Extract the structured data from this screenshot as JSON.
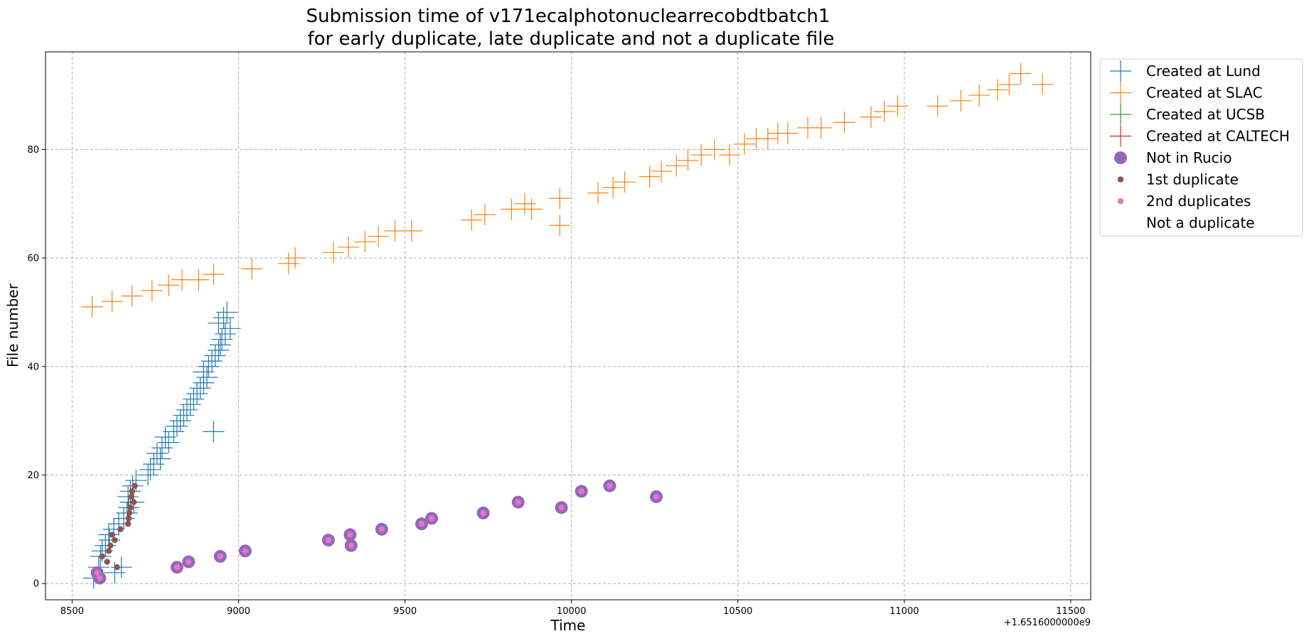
{
  "chart_data": {
    "type": "scatter",
    "title": [
      "Submission time of v171ecalphotonuclearrecobdtbatch1",
      "for early duplicate, late duplicate and not a duplicate file"
    ],
    "xlabel": "Time",
    "ylabel": "File number",
    "x_offset_label": "+1.6516000000e9",
    "xlim": [
      8420,
      11560
    ],
    "ylim": [
      -3,
      98
    ],
    "xticks": [
      8500,
      9000,
      9500,
      10000,
      10500,
      11000,
      11500
    ],
    "yticks": [
      0,
      20,
      40,
      60,
      80
    ],
    "grid": true,
    "legend_position": "outside-right",
    "series": [
      {
        "name": "Created at Lund",
        "marker": "plus",
        "color": "#1f77b4",
        "points": [
          [
            8565,
            1
          ],
          [
            8580,
            3
          ],
          [
            8590,
            6
          ],
          [
            8610,
            9
          ],
          [
            8628,
            2
          ],
          [
            8648,
            3
          ],
          [
            8585,
            5
          ],
          [
            8600,
            7
          ],
          [
            8612,
            8
          ],
          [
            8625,
            10
          ],
          [
            8640,
            11
          ],
          [
            8655,
            12
          ],
          [
            8665,
            13
          ],
          [
            8670,
            14
          ],
          [
            8675,
            15
          ],
          [
            8685,
            15
          ],
          [
            8668,
            16
          ],
          [
            8675,
            17
          ],
          [
            8682,
            18
          ],
          [
            8692,
            19
          ],
          [
            8728,
            20
          ],
          [
            8735,
            21
          ],
          [
            8745,
            22
          ],
          [
            8765,
            23
          ],
          [
            8755,
            24
          ],
          [
            8770,
            25
          ],
          [
            8790,
            26
          ],
          [
            8780,
            27
          ],
          [
            8805,
            28
          ],
          [
            8815,
            29
          ],
          [
            8825,
            30
          ],
          [
            8835,
            31
          ],
          [
            8845,
            32
          ],
          [
            8855,
            33
          ],
          [
            8865,
            34
          ],
          [
            8875,
            35
          ],
          [
            8885,
            36
          ],
          [
            8895,
            37
          ],
          [
            8905,
            38
          ],
          [
            8895,
            39
          ],
          [
            8910,
            40
          ],
          [
            8920,
            41
          ],
          [
            8930,
            42
          ],
          [
            8940,
            43
          ],
          [
            8945,
            44
          ],
          [
            8950,
            45
          ],
          [
            8960,
            46
          ],
          [
            8975,
            47
          ],
          [
            8940,
            48
          ],
          [
            8955,
            49
          ],
          [
            8965,
            50
          ],
          [
            8925,
            28
          ]
        ]
      },
      {
        "name": "Created at SLAC",
        "marker": "plus",
        "color": "#ff7f0e",
        "points": [
          [
            8560,
            51
          ],
          [
            8620,
            52
          ],
          [
            8680,
            53
          ],
          [
            8740,
            54
          ],
          [
            8790,
            55
          ],
          [
            8830,
            56
          ],
          [
            8880,
            56
          ],
          [
            8925,
            57
          ],
          [
            9040,
            58
          ],
          [
            9150,
            59
          ],
          [
            9170,
            60
          ],
          [
            9285,
            61
          ],
          [
            9330,
            62
          ],
          [
            9380,
            63
          ],
          [
            9420,
            64
          ],
          [
            9470,
            65
          ],
          [
            9520,
            65
          ],
          [
            9700,
            67
          ],
          [
            9740,
            68
          ],
          [
            9820,
            69
          ],
          [
            9860,
            70
          ],
          [
            9880,
            69
          ],
          [
            9965,
            71
          ],
          [
            9965,
            66
          ],
          [
            10080,
            72
          ],
          [
            10125,
            73
          ],
          [
            10160,
            74
          ],
          [
            10235,
            75
          ],
          [
            10270,
            76
          ],
          [
            10315,
            77
          ],
          [
            10350,
            78
          ],
          [
            10390,
            79
          ],
          [
            10430,
            80
          ],
          [
            10475,
            79
          ],
          [
            10520,
            81
          ],
          [
            10555,
            82
          ],
          [
            10590,
            82
          ],
          [
            10620,
            83
          ],
          [
            10650,
            83
          ],
          [
            10710,
            84
          ],
          [
            10750,
            84
          ],
          [
            10820,
            85
          ],
          [
            10900,
            86
          ],
          [
            10940,
            87
          ],
          [
            10980,
            88
          ],
          [
            11100,
            88
          ],
          [
            11170,
            89
          ],
          [
            11225,
            90
          ],
          [
            11280,
            91
          ],
          [
            11315,
            92
          ],
          [
            11350,
            94
          ],
          [
            11415,
            92
          ]
        ]
      },
      {
        "name": "Created at UCSB",
        "marker": "plus",
        "color": "#2ca02c",
        "points": []
      },
      {
        "name": "Created at CALTECH",
        "marker": "plus",
        "color": "#d62728",
        "points": []
      },
      {
        "name": "Not in Rucio",
        "marker": "circle-large",
        "color": "#9467bd",
        "points": [
          [
            8575,
            2
          ],
          [
            8583,
            1
          ],
          [
            8815,
            3
          ],
          [
            8850,
            4
          ],
          [
            8945,
            5
          ],
          [
            9020,
            6
          ],
          [
            9270,
            8
          ],
          [
            9335,
            9
          ],
          [
            9338,
            7
          ],
          [
            9430,
            10
          ],
          [
            9550,
            11
          ],
          [
            9580,
            12
          ],
          [
            9735,
            13
          ],
          [
            9840,
            15
          ],
          [
            9970,
            14
          ],
          [
            10030,
            17
          ],
          [
            10115,
            18
          ],
          [
            10255,
            16
          ]
        ]
      },
      {
        "name": "1st duplicate",
        "marker": "circle-small",
        "color": "#8c564b",
        "points": [
          [
            8575,
            2
          ],
          [
            8583,
            1
          ],
          [
            8590,
            5
          ],
          [
            8605,
            4
          ],
          [
            8610,
            6
          ],
          [
            8615,
            7
          ],
          [
            8620,
            9
          ],
          [
            8628,
            8
          ],
          [
            8635,
            3
          ],
          [
            8645,
            10
          ],
          [
            8668,
            11
          ],
          [
            8670,
            12
          ],
          [
            8672,
            13
          ],
          [
            8675,
            14
          ],
          [
            8678,
            16
          ],
          [
            8680,
            17
          ],
          [
            8685,
            15
          ],
          [
            8688,
            18
          ]
        ]
      },
      {
        "name": "2nd duplicates",
        "marker": "circle-small",
        "color": "#e377c2",
        "points": [
          [
            8575,
            2
          ],
          [
            8583,
            1
          ],
          [
            8815,
            3
          ],
          [
            8850,
            4
          ],
          [
            8945,
            5
          ],
          [
            9020,
            6
          ],
          [
            9270,
            8
          ],
          [
            9335,
            9
          ],
          [
            9338,
            7
          ],
          [
            9430,
            10
          ],
          [
            9550,
            11
          ],
          [
            9580,
            12
          ],
          [
            9735,
            13
          ],
          [
            9840,
            15
          ],
          [
            9970,
            14
          ],
          [
            10030,
            17
          ],
          [
            10115,
            18
          ],
          [
            10255,
            16
          ]
        ]
      },
      {
        "name": "Not a duplicate",
        "marker": "none",
        "color": "#bcbd22",
        "points": []
      }
    ]
  }
}
